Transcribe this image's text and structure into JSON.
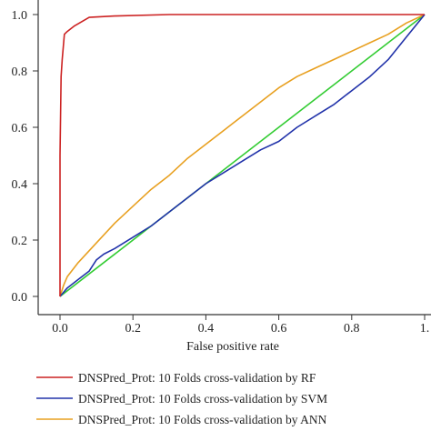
{
  "chart_data": {
    "type": "line",
    "xlabel": "False positive rate",
    "ylabel": "",
    "xlim": [
      0,
      1
    ],
    "ylim": [
      0,
      1
    ],
    "x_ticks": [
      "0.0",
      "0.2",
      "0.4",
      "0.6",
      "0.8",
      "1."
    ],
    "y_ticks": [
      "0.0",
      "0.2",
      "0.4",
      "0.6",
      "0.8",
      "1.0"
    ],
    "grid": false,
    "legend_position": "bottom",
    "series": [
      {
        "name": "DNSPred_Prot: 10 Folds cross-validation by RF",
        "color": "#cc2222",
        "x": [
          0.0,
          0.0,
          0.003,
          0.006,
          0.012,
          0.02,
          0.04,
          0.08,
          0.15,
          0.3,
          0.5,
          0.7,
          1.0
        ],
        "y": [
          0.0,
          0.5,
          0.78,
          0.84,
          0.93,
          0.94,
          0.96,
          0.99,
          0.995,
          1.0,
          1.0,
          1.0,
          1.0
        ]
      },
      {
        "name": "DNSPred_Prot: 10 Folds cross-validation by SVM",
        "color": "#2233aa",
        "x": [
          0.0,
          0.02,
          0.05,
          0.08,
          0.1,
          0.12,
          0.15,
          0.2,
          0.25,
          0.3,
          0.35,
          0.4,
          0.45,
          0.5,
          0.55,
          0.6,
          0.65,
          0.7,
          0.75,
          0.8,
          0.85,
          0.9,
          0.95,
          1.0
        ],
        "y": [
          0.0,
          0.03,
          0.06,
          0.09,
          0.13,
          0.15,
          0.17,
          0.21,
          0.25,
          0.3,
          0.35,
          0.4,
          0.44,
          0.48,
          0.52,
          0.55,
          0.6,
          0.64,
          0.68,
          0.73,
          0.78,
          0.84,
          0.92,
          1.0
        ]
      },
      {
        "name": "DNSPred_Prot: 10 Folds cross-validation by ANN",
        "color": "#e8a020",
        "x": [
          0.0,
          0.01,
          0.02,
          0.05,
          0.1,
          0.15,
          0.2,
          0.25,
          0.3,
          0.35,
          0.4,
          0.45,
          0.5,
          0.55,
          0.6,
          0.65,
          0.7,
          0.75,
          0.8,
          0.85,
          0.9,
          0.95,
          1.0
        ],
        "y": [
          0.0,
          0.04,
          0.07,
          0.12,
          0.19,
          0.26,
          0.32,
          0.38,
          0.43,
          0.49,
          0.54,
          0.59,
          0.64,
          0.69,
          0.74,
          0.78,
          0.81,
          0.84,
          0.87,
          0.9,
          0.93,
          0.97,
          1.0
        ]
      },
      {
        "name": "",
        "color": "#33cc33",
        "x": [
          0.0,
          1.0
        ],
        "y": [
          0.0,
          1.0
        ]
      }
    ]
  }
}
